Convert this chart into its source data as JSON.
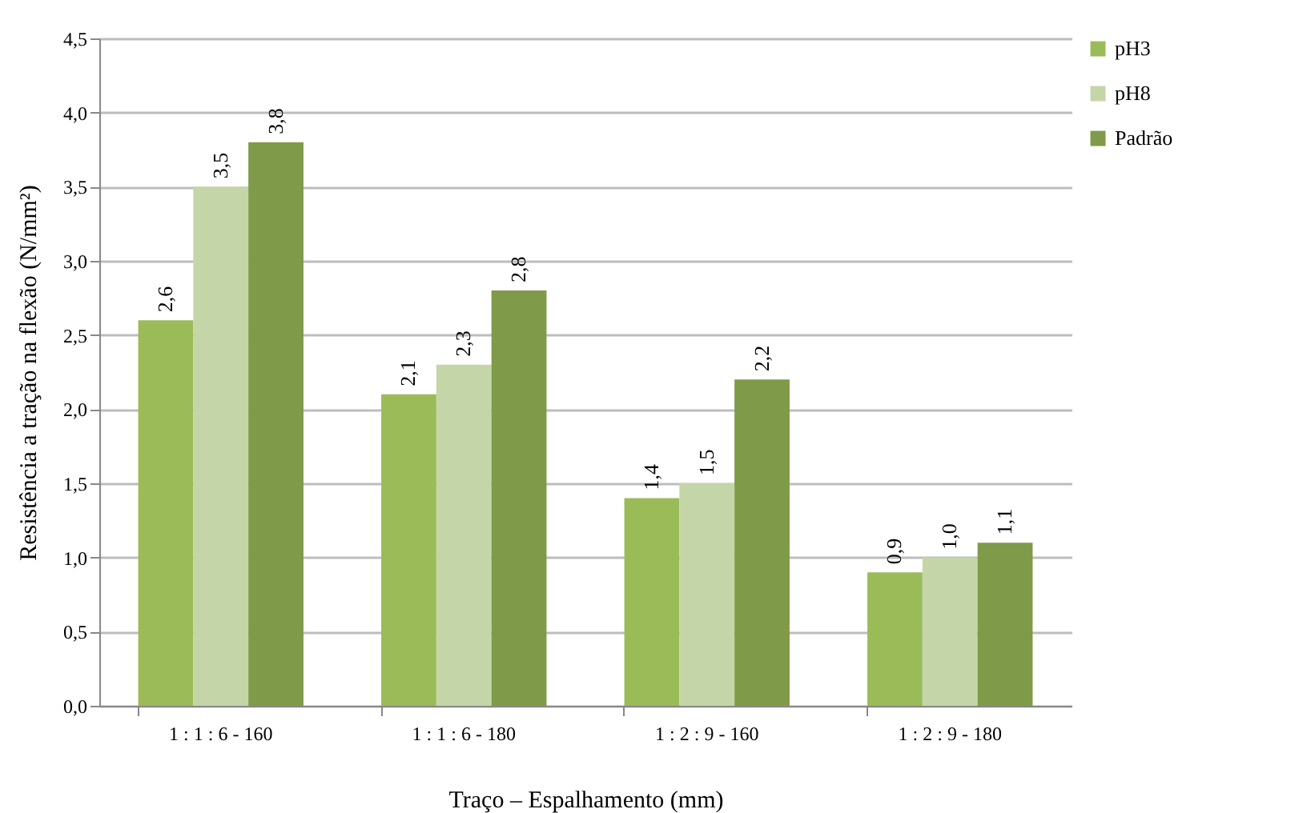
{
  "chart_data": {
    "type": "bar",
    "xlabel": "Traço – Espalhamento (mm)",
    "ylabel": "Resistência a tração na flexão (N/mm²)",
    "categories": [
      "1 : 1 : 6 - 160",
      "1 : 1 : 6 - 180",
      "1 : 2 : 9 - 160",
      "1 : 2 : 9 - 180"
    ],
    "series": [
      {
        "name": "pH3",
        "color": "#9bbb59",
        "values": [
          2.6,
          2.1,
          1.4,
          0.9
        ],
        "value_labels": [
          "2,6",
          "2,1",
          "1,4",
          "0,9"
        ]
      },
      {
        "name": "pH8",
        "color": "#c4d6a8",
        "values": [
          3.5,
          2.3,
          1.5,
          1.0
        ],
        "value_labels": [
          "3,5",
          "2,3",
          "1,5",
          "1,0"
        ]
      },
      {
        "name": "Padrão",
        "color": "#7f9a48",
        "values": [
          3.8,
          2.8,
          2.2,
          1.1
        ],
        "value_labels": [
          "3,8",
          "2,8",
          "2,2",
          "1,1"
        ]
      }
    ],
    "ylim": [
      0,
      4.5
    ],
    "yticks": [
      {
        "value": 0,
        "label": "0,0"
      },
      {
        "value": 0.5,
        "label": "0,5"
      },
      {
        "value": 1,
        "label": "1,0"
      },
      {
        "value": 1.5,
        "label": "1,5"
      },
      {
        "value": 2,
        "label": "2,0"
      },
      {
        "value": 2.5,
        "label": "2,5"
      },
      {
        "value": 3,
        "label": "3,0"
      },
      {
        "value": 3.5,
        "label": "3,5"
      },
      {
        "value": 4,
        "label": "4,0"
      },
      {
        "value": 4.5,
        "label": "4,5"
      }
    ],
    "grid": "y",
    "legend": "right"
  }
}
